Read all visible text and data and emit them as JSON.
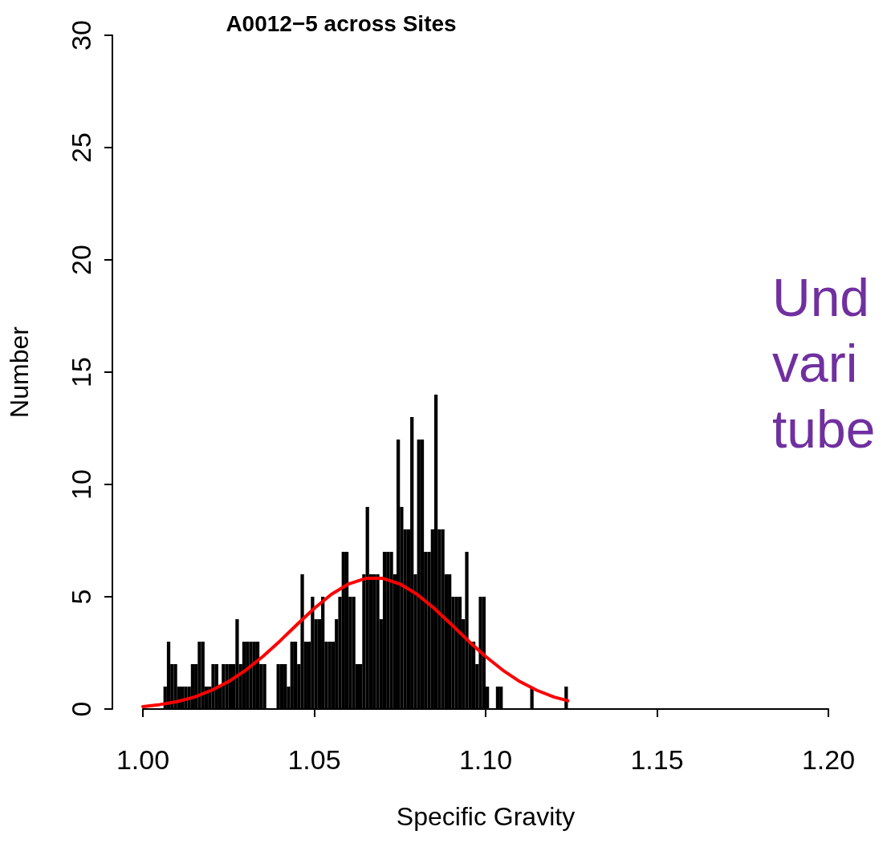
{
  "chart_data": {
    "type": "histogram",
    "title": "A0012−5 across Sites",
    "xlabel": "Specific Gravity",
    "ylabel": "Number",
    "annotations": [
      "Und\nvari\ntube"
    ],
    "series": [
      {
        "color": "#000000",
        "bins": [
          1.0,
          1.001,
          1.002,
          1.003,
          1.004,
          1.005,
          1.006,
          1.007,
          1.008,
          1.009,
          1.01,
          1.011,
          1.012,
          1.013,
          1.014,
          1.015,
          1.016,
          1.017,
          1.018,
          1.019,
          1.02,
          1.021,
          1.022,
          1.023,
          1.024,
          1.025,
          1.026,
          1.027,
          1.028,
          1.029,
          1.03,
          1.031,
          1.032,
          1.033,
          1.034,
          1.035,
          1.036,
          1.037,
          1.038,
          1.039,
          1.04,
          1.041,
          1.042,
          1.043,
          1.044,
          1.045,
          1.046,
          1.047,
          1.048,
          1.049,
          1.05,
          1.051,
          1.052,
          1.053,
          1.054,
          1.055,
          1.056,
          1.057,
          1.058,
          1.059,
          1.06,
          1.061,
          1.062,
          1.063,
          1.064,
          1.065,
          1.066,
          1.067,
          1.068,
          1.069,
          1.07,
          1.071,
          1.072,
          1.073,
          1.074,
          1.075,
          1.076,
          1.077,
          1.078,
          1.079,
          1.08,
          1.081,
          1.082,
          1.083,
          1.084,
          1.085,
          1.086,
          1.087,
          1.088,
          1.089,
          1.09,
          1.091,
          1.092,
          1.093,
          1.094,
          1.095,
          1.096,
          1.097,
          1.098,
          1.099,
          1.1,
          1.101,
          1.102,
          1.103,
          1.104,
          1.105,
          1.106,
          1.107,
          1.108,
          1.109,
          1.11,
          1.111,
          1.112,
          1.113,
          1.114,
          1.115,
          1.116,
          1.117,
          1.118,
          1.119,
          1.12,
          1.121,
          1.122,
          1.123,
          1.124
        ],
        "values": [
          0,
          0,
          0,
          0,
          0,
          0,
          1,
          3,
          2,
          2,
          1,
          1,
          1,
          1,
          2,
          2,
          3,
          3,
          1,
          1,
          2,
          2,
          1,
          2,
          2,
          2,
          2,
          4,
          2,
          3,
          3,
          3,
          3,
          3,
          2,
          2,
          0,
          0,
          0,
          2,
          2,
          2,
          1,
          3,
          3,
          2,
          6,
          3,
          3,
          5,
          4,
          4,
          5,
          3,
          3,
          3,
          4,
          5,
          7,
          7,
          5,
          5,
          2,
          2,
          6,
          9,
          6,
          6,
          6,
          4,
          7,
          7,
          7,
          6,
          12,
          9,
          8,
          8,
          13,
          6,
          12,
          12,
          7,
          7,
          8,
          14,
          8,
          8,
          6,
          6,
          5,
          5,
          5,
          4,
          7,
          3,
          3,
          2,
          5,
          5,
          1,
          0,
          0,
          1,
          1,
          0,
          0,
          0,
          0,
          0,
          0,
          0,
          0,
          1,
          0,
          0,
          0,
          0,
          0,
          0,
          0,
          0,
          0,
          1
        ]
      },
      {
        "type": "line",
        "color": "#ff0000",
        "x": [
          1.0,
          1.005,
          1.01,
          1.015,
          1.02,
          1.025,
          1.03,
          1.035,
          1.04,
          1.045,
          1.05,
          1.055,
          1.06,
          1.065,
          1.07,
          1.075,
          1.08,
          1.085,
          1.09,
          1.095,
          1.1,
          1.105,
          1.11,
          1.115,
          1.12,
          1.124
        ],
        "values": [
          0.11,
          0.2,
          0.33,
          0.53,
          0.83,
          1.22,
          1.73,
          2.34,
          3.03,
          3.77,
          4.48,
          5.11,
          5.57,
          5.82,
          5.82,
          5.57,
          5.11,
          4.48,
          3.77,
          3.03,
          2.34,
          1.73,
          1.22,
          0.83,
          0.53,
          0.37
        ]
      }
    ],
    "xlim": [
      1.0,
      1.2
    ],
    "xticks": [
      {
        "value": 1.0,
        "label": "1.00"
      },
      {
        "value": 1.05,
        "label": "1.05"
      },
      {
        "value": 1.1,
        "label": "1.10"
      },
      {
        "value": 1.15,
        "label": "1.15"
      },
      {
        "value": 1.2,
        "label": "1.20"
      }
    ],
    "ylim": [
      0,
      30
    ],
    "yticks": [
      0,
      5,
      10,
      15,
      20,
      25,
      30
    ],
    "grid": false
  }
}
